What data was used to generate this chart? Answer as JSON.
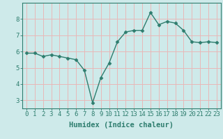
{
  "x": [
    0,
    1,
    2,
    3,
    4,
    5,
    6,
    7,
    8,
    9,
    10,
    11,
    12,
    13,
    14,
    15,
    16,
    17,
    18,
    19,
    20,
    21,
    22,
    23
  ],
  "y": [
    5.9,
    5.9,
    5.7,
    5.8,
    5.7,
    5.6,
    5.5,
    4.85,
    2.85,
    4.4,
    5.3,
    6.6,
    7.2,
    7.3,
    7.3,
    8.4,
    7.65,
    7.85,
    7.75,
    7.3,
    6.6,
    6.55,
    6.6,
    6.55
  ],
  "line_color": "#2e7d6e",
  "marker": "D",
  "marker_size": 2.5,
  "background_color": "#ceeaea",
  "grid_color": "#e8b8b8",
  "xlabel": "Humidex (Indice chaleur)",
  "xlabel_fontsize": 7.5,
  "ylim": [
    2.5,
    9.0
  ],
  "xlim": [
    -0.5,
    23.5
  ],
  "yticks": [
    3,
    4,
    5,
    6,
    7,
    8
  ],
  "xticks": [
    0,
    1,
    2,
    3,
    4,
    5,
    6,
    7,
    8,
    9,
    10,
    11,
    12,
    13,
    14,
    15,
    16,
    17,
    18,
    19,
    20,
    21,
    22,
    23
  ],
  "tick_fontsize": 6.5,
  "linewidth": 1.0
}
